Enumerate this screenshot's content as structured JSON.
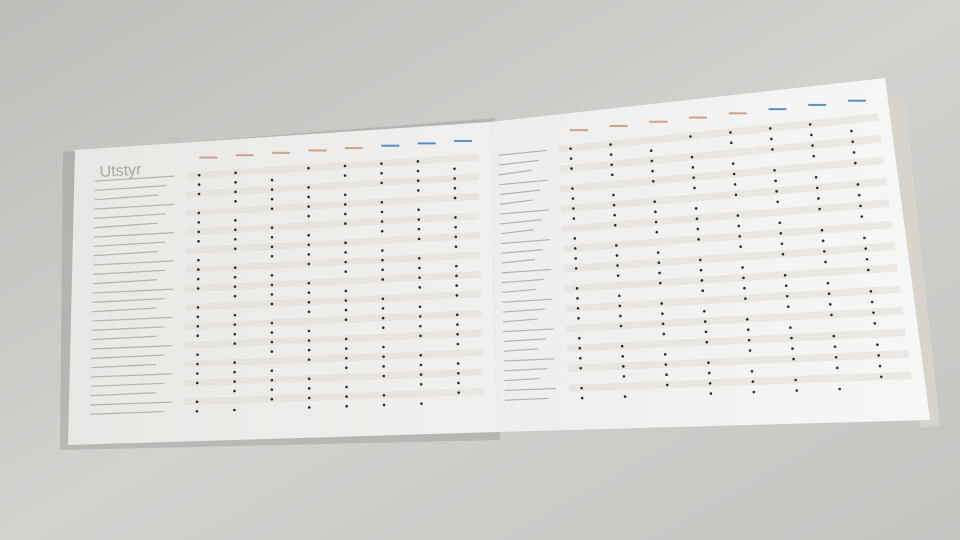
{
  "left_page": {
    "title": "Utstyr"
  },
  "colors": {
    "table_shade": "#e2dbd3",
    "header_blue": "#5b8fc4",
    "header_tan": "#c9a48a",
    "page": "#f4f3f1",
    "background": "#c9c9c7"
  }
}
